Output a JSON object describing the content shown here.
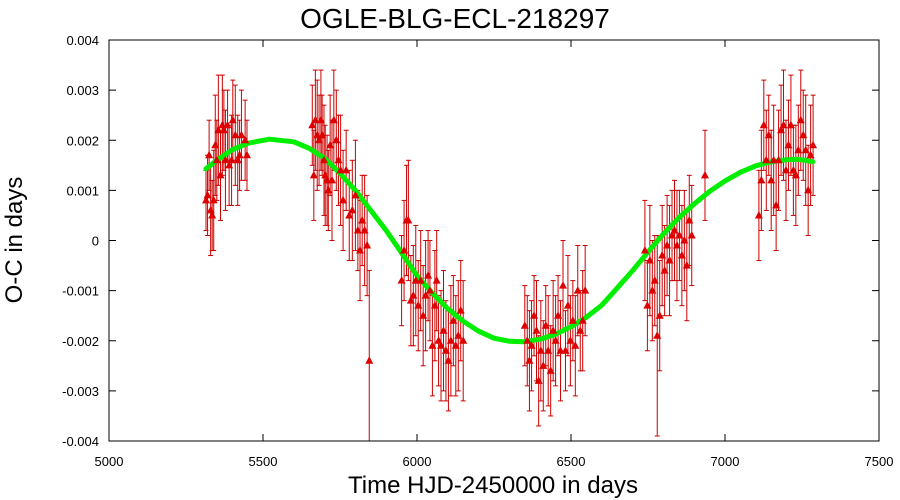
{
  "chart_data": {
    "type": "scatter",
    "title": "OGLE-BLG-ECL-218297",
    "xlabel": "Time HJD-2450000 in days",
    "ylabel": "O-C in days",
    "xlim": [
      5000,
      7500
    ],
    "ylim": [
      -0.004,
      0.004
    ],
    "x_ticks": [
      5000,
      5500,
      6000,
      6500,
      7000,
      7500
    ],
    "x_tick_labels": [
      "5000",
      "5500",
      "6000",
      "6500",
      "7000",
      "7500"
    ],
    "y_ticks": [
      0.004,
      0.003,
      0.002,
      0.001,
      0,
      -0.001,
      -0.002,
      -0.003,
      -0.004
    ],
    "y_tick_labels": [
      "0.004",
      "0.003",
      "0.002",
      "0.001",
      "0",
      "-0.001",
      "-0.002",
      "-0.003",
      "-0.004"
    ],
    "grid": false,
    "colors": {
      "points": "#dd0000",
      "errorbars": "#cc0000",
      "fit": "#00ee00",
      "axes": "#000000"
    },
    "series": [
      {
        "type": "scatter",
        "marker": "triangle",
        "x": [
          5315,
          5320,
          5325,
          5330,
          5335,
          5340,
          5345,
          5350,
          5355,
          5362,
          5368,
          5373,
          5378,
          5385,
          5390,
          5398,
          5402,
          5410,
          5418,
          5424,
          5430,
          5442,
          5448,
          5660,
          5665,
          5670,
          5676,
          5682,
          5688,
          5692,
          5698,
          5702,
          5708,
          5712,
          5718,
          5724,
          5730,
          5738,
          5745,
          5752,
          5760,
          5770,
          5780,
          5790,
          5800,
          5808,
          5815,
          5822,
          5830,
          5838,
          5845,
          5950,
          5958,
          5966,
          5972,
          5980,
          5988,
          5996,
          6004,
          6012,
          6020,
          6028,
          6036,
          6042,
          6050,
          6058,
          6064,
          6070,
          6078,
          6086,
          6094,
          6102,
          6110,
          6118,
          6126,
          6134,
          6142,
          6150,
          6350,
          6358,
          6365,
          6372,
          6380,
          6388,
          6395,
          6402,
          6410,
          6418,
          6426,
          6434,
          6442,
          6450,
          6458,
          6466,
          6474,
          6482,
          6490,
          6498,
          6506,
          6514,
          6522,
          6530,
          6538,
          6546,
          6740,
          6748,
          6756,
          6764,
          6772,
          6780,
          6788,
          6796,
          6804,
          6812,
          6820,
          6828,
          6836,
          6844,
          6852,
          6860,
          6868,
          6876,
          6884,
          6892,
          6935,
          7110,
          7118,
          7126,
          7134,
          7142,
          7150,
          7158,
          7166,
          7174,
          7182,
          7190,
          7198,
          7206,
          7214,
          7222,
          7230,
          7238,
          7246,
          7254,
          7262,
          7270,
          7278,
          7286
        ],
        "y": [
          0.0008,
          0.0009,
          0.0017,
          0.0006,
          0.0005,
          0.0008,
          0.0019,
          0.0016,
          0.0022,
          0.0013,
          0.0023,
          0.0022,
          0.0016,
          0.0023,
          0.0015,
          0.0016,
          0.0024,
          0.0021,
          0.0016,
          0.0017,
          0.0021,
          0.002,
          0.0017,
          0.0023,
          0.0013,
          0.0024,
          0.0021,
          0.002,
          0.0024,
          0.0021,
          0.0016,
          0.0013,
          0.0012,
          0.001,
          0.0019,
          0.0012,
          0.0024,
          0.002,
          0.0016,
          0.0014,
          0.0008,
          0.0014,
          0.0005,
          0.0006,
          0.0009,
          0.0002,
          -0.0002,
          0.0004,
          0.0002,
          -0.0001,
          -0.0024,
          -0.0008,
          -0.0002,
          0.0004,
          0.0004,
          -0.0012,
          -0.0011,
          -0.0008,
          -0.0013,
          -0.0008,
          -0.0015,
          -0.0011,
          -0.0007,
          -0.001,
          -0.0021,
          -0.0013,
          -0.0008,
          -0.002,
          -0.0021,
          -0.0018,
          -0.0022,
          -0.0024,
          -0.002,
          -0.0016,
          -0.0021,
          -0.0019,
          -0.0014,
          -0.002,
          -0.0017,
          -0.002,
          -0.0024,
          -0.0021,
          -0.0015,
          -0.0018,
          -0.0028,
          -0.0022,
          -0.0025,
          -0.0017,
          -0.0022,
          -0.0026,
          -0.0018,
          -0.002,
          -0.0015,
          -0.0022,
          -0.0009,
          -0.0022,
          -0.0013,
          -0.002,
          -0.0016,
          -0.0021,
          -0.001,
          -0.0018,
          -0.0016,
          -0.001,
          -0.0002,
          -0.0013,
          -0.0004,
          -0.001,
          -0.0008,
          -0.0019,
          -0.0015,
          -0.0003,
          -0.0006,
          -0.0001,
          -0.0004,
          0.0001,
          0.0002,
          -0.0001,
          0.0001,
          -0.0003,
          0.0,
          -0.0005,
          0.0004,
          0.0001,
          0.0013,
          0.0005,
          0.0012,
          0.0023,
          0.0016,
          0.0021,
          0.0012,
          0.0016,
          0.0007,
          0.0016,
          0.0022,
          0.0023,
          0.0014,
          0.0019,
          0.0023,
          0.0014,
          0.0013,
          0.0018,
          0.0024,
          0.0021,
          0.0018,
          0.001,
          0.0017,
          0.0019
        ],
        "err": [
          0.0006,
          0.0008,
          0.0007,
          0.0009,
          0.0007,
          0.001,
          0.001,
          0.0008,
          0.0011,
          0.0009,
          0.001,
          0.0008,
          0.001,
          0.0007,
          0.0008,
          0.0009,
          0.0008,
          0.001,
          0.0009,
          0.0007,
          0.0009,
          0.0008,
          0.0007,
          0.0008,
          0.0009,
          0.001,
          0.0011,
          0.0009,
          0.001,
          0.0008,
          0.0011,
          0.001,
          0.0009,
          0.0008,
          0.001,
          0.0012,
          0.001,
          0.001,
          0.0009,
          0.0011,
          0.001,
          0.0008,
          0.0009,
          0.001,
          0.0011,
          0.0008,
          0.001,
          0.0009,
          0.0011,
          0.001,
          0.0018,
          0.0009,
          0.001,
          0.0011,
          0.0012,
          0.0009,
          0.001,
          0.0011,
          0.0009,
          0.001,
          0.001,
          0.0011,
          0.0009,
          0.001,
          0.001,
          0.0011,
          0.001,
          0.0009,
          0.0011,
          0.0012,
          0.001,
          0.001,
          0.0011,
          0.0009,
          0.001,
          0.0011,
          0.001,
          0.0012,
          0.0008,
          0.0009,
          0.001,
          0.0009,
          0.0008,
          0.001,
          0.0009,
          0.001,
          0.0009,
          0.0008,
          0.0011,
          0.0009,
          0.001,
          0.0009,
          0.0008,
          0.001,
          0.0009,
          0.0008,
          0.001,
          0.0009,
          0.0008,
          0.001,
          0.0009,
          0.0008,
          0.001,
          0.0009,
          0.001,
          0.0009,
          0.0011,
          0.001,
          0.0009,
          0.002,
          0.0011,
          0.001,
          0.0009,
          0.001,
          0.0011,
          0.0009,
          0.001,
          0.0011,
          0.0009,
          0.001,
          0.001,
          0.0011,
          0.0009,
          0.001,
          0.0009,
          0.0009,
          0.001,
          0.0009,
          0.001,
          0.0008,
          0.001,
          0.0011,
          0.0009,
          0.001,
          0.0009,
          0.0011,
          0.001,
          0.0009,
          0.001,
          0.0009,
          0.001,
          0.0009,
          0.001,
          0.0009,
          0.0011,
          0.0009,
          0.001,
          0.001
        ]
      },
      {
        "type": "line",
        "x": [
          5315,
          5350,
          5400,
          5450,
          5520,
          5600,
          5650,
          5700,
          5750,
          5800,
          5850,
          5900,
          5950,
          6000,
          6050,
          6100,
          6150,
          6200,
          6250,
          6300,
          6345,
          6400,
          6450,
          6500,
          6550,
          6600,
          6650,
          6700,
          6750,
          6800,
          6850,
          6900,
          6950,
          7000,
          7050,
          7100,
          7150,
          7200,
          7235,
          7260,
          7285
        ],
        "y": [
          0.00143,
          0.0016,
          0.00181,
          0.00194,
          0.00202,
          0.00197,
          0.00184,
          0.00164,
          0.00134,
          0.001,
          0.0006,
          0.0002,
          -0.00025,
          -0.0007,
          -0.00105,
          -0.00136,
          -0.00161,
          -0.00181,
          -0.00195,
          -0.00201,
          -0.00202,
          -0.00197,
          -0.00187,
          -0.00172,
          -0.00153,
          -0.00129,
          -0.00095,
          -0.0006,
          -0.00023,
          0.00013,
          0.00045,
          0.00073,
          0.00098,
          0.00119,
          0.00136,
          0.00149,
          0.00157,
          0.00161,
          0.00162,
          0.0016,
          0.00157
        ]
      }
    ]
  }
}
